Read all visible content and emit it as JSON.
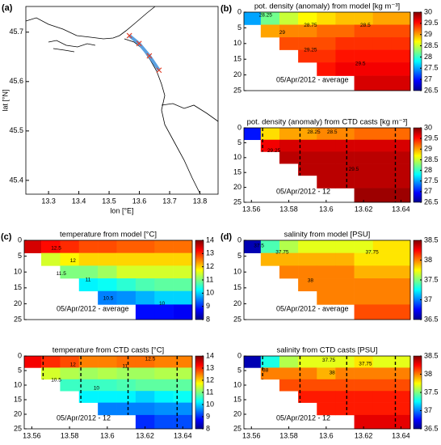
{
  "chart_data": [
    {
      "type": "map",
      "label": "(a)",
      "xlabel": "lon [°E]",
      "ylabel": "lat [°N]",
      "xlim": [
        13.225,
        13.86
      ],
      "ylim": [
        45.372,
        45.752
      ],
      "xticks": [
        13.3,
        13.4,
        13.5,
        13.6,
        13.7,
        13.8
      ],
      "yticks": [
        45.4,
        45.5,
        45.6,
        45.7
      ],
      "stations": {
        "lon": [
          13.567,
          13.599,
          13.633,
          13.665
        ],
        "lat": [
          45.693,
          45.677,
          45.652,
          45.623
        ]
      },
      "line_color": "#5aa0e0",
      "marker_color": "#e0402a"
    },
    {
      "type": "contour",
      "label": "(b)",
      "title": "pot. density (anomaly) from model [kg m⁻³]",
      "annotation": "05/Apr/2012 - average",
      "x": [
        13.56,
        13.57,
        13.58,
        13.59,
        13.6,
        13.61,
        13.62,
        13.63,
        13.64
      ],
      "depths": [
        2,
        6,
        10,
        14,
        18,
        22.5
      ],
      "z": [
        [
          27.5,
          28.2,
          28.5,
          28.7,
          28.8,
          28.9,
          28.9,
          29.0,
          29.0
        ],
        [
          null,
          29.0,
          29.1,
          29.1,
          29.2,
          29.2,
          29.3,
          29.3,
          29.3
        ],
        [
          null,
          null,
          29.3,
          29.3,
          29.3,
          29.4,
          29.4,
          29.4,
          29.4
        ],
        [
          null,
          null,
          null,
          29.4,
          29.4,
          29.5,
          29.5,
          29.5,
          29.5
        ],
        [
          null,
          null,
          null,
          null,
          29.5,
          29.6,
          29.6,
          29.6,
          29.6
        ],
        [
          null,
          null,
          null,
          null,
          null,
          null,
          29.7,
          29.7,
          29.7
        ]
      ],
      "xlim": [
        13.556,
        13.645
      ],
      "ylim": [
        0,
        25
      ],
      "y_inverted": true,
      "yticks": [
        0,
        5,
        10,
        15,
        20,
        25
      ],
      "colorbar": {
        "lim": [
          26.5,
          30
        ],
        "ticks": [
          26.5,
          27,
          27.5,
          28,
          28.5,
          29,
          29.5,
          30
        ]
      },
      "contour_labels": [
        28.25,
        28.5,
        28.75,
        29,
        29.25,
        29.5
      ]
    },
    {
      "type": "contour",
      "title": "pot. density (anomaly) from CTD casts [kg m⁻³]",
      "annotation": "05/Apr/2012 - 12",
      "x": [
        13.56,
        13.57,
        13.58,
        13.59,
        13.6,
        13.61,
        13.62,
        13.63,
        13.64
      ],
      "depths": [
        2,
        6,
        10,
        14,
        18,
        22.5
      ],
      "z": [
        [
          27.0,
          28.8,
          29.0,
          29.0,
          29.1,
          29.1,
          29.2,
          29.2,
          29.2
        ],
        [
          null,
          29.6,
          29.7,
          29.7,
          29.7,
          29.7,
          29.7,
          29.7,
          29.7
        ],
        [
          null,
          null,
          29.8,
          29.8,
          29.8,
          29.8,
          29.8,
          29.8,
          29.8
        ],
        [
          null,
          null,
          null,
          29.8,
          29.8,
          29.8,
          29.8,
          29.8,
          29.8
        ],
        [
          null,
          null,
          null,
          null,
          29.8,
          29.8,
          29.8,
          29.8,
          29.8
        ],
        [
          null,
          null,
          null,
          null,
          null,
          null,
          29.9,
          29.9,
          29.9
        ]
      ],
      "xlim": [
        13.556,
        13.645
      ],
      "ylim": [
        0,
        25
      ],
      "y_inverted": true,
      "yticks": [
        0,
        5,
        10,
        15,
        20,
        25
      ],
      "xticks": [
        13.56,
        13.58,
        13.6,
        13.62,
        13.64
      ],
      "colorbar": {
        "lim": [
          26.5,
          30
        ],
        "ticks": [
          26.5,
          27,
          27.5,
          28,
          28.5,
          29,
          29.5,
          30
        ]
      },
      "casts": [
        13.566,
        13.586,
        13.611,
        13.637
      ],
      "contour_labels": [
        28.25,
        28.5,
        29.25,
        29.5
      ]
    },
    {
      "type": "contour",
      "label": "(c)",
      "title": "temperature from model [°C]",
      "annotation": "05/Apr/2012 - average",
      "x": [
        13.56,
        13.57,
        13.58,
        13.59,
        13.6,
        13.61,
        13.62,
        13.63,
        13.64
      ],
      "depths": [
        2,
        6,
        10,
        14,
        18,
        22.5
      ],
      "z": [
        [
          13.5,
          13.2,
          13.0,
          12.8,
          12.8,
          12.7,
          12.7,
          12.6,
          12.6
        ],
        [
          null,
          11.5,
          11.8,
          12.0,
          12.0,
          12.0,
          12.0,
          12.0,
          12.0
        ],
        [
          null,
          null,
          11.0,
          11.0,
          11.2,
          11.5,
          11.5,
          11.5,
          11.5
        ],
        [
          null,
          null,
          null,
          10.2,
          10.3,
          10.5,
          10.7,
          10.8,
          10.8
        ],
        [
          null,
          null,
          null,
          null,
          9.5,
          9.6,
          9.8,
          10.0,
          10.0
        ],
        [
          null,
          null,
          null,
          null,
          null,
          null,
          8.8,
          8.8,
          8.7
        ]
      ],
      "xlim": [
        13.556,
        13.645
      ],
      "ylim": [
        0,
        25
      ],
      "y_inverted": true,
      "yticks": [
        0,
        5,
        10,
        15,
        20,
        25
      ],
      "colorbar": {
        "lim": [
          8,
          14
        ],
        "ticks": [
          8,
          9,
          10,
          11,
          12,
          13,
          14
        ]
      },
      "contour_labels": [
        12.5,
        12,
        11.5,
        11,
        10.5,
        10
      ]
    },
    {
      "type": "contour",
      "title": "temperature from CTD casts [°C]",
      "annotation": "05/Apr/2012 - 12",
      "x": [
        13.56,
        13.57,
        13.58,
        13.59,
        13.6,
        13.61,
        13.62,
        13.63,
        13.64
      ],
      "depths": [
        2,
        6,
        10,
        14,
        18,
        22.5
      ],
      "z": [
        [
          13.3,
          13.0,
          12.8,
          12.5,
          12.5,
          12.6,
          12.6,
          12.5,
          12.5
        ],
        [
          null,
          11.5,
          11.3,
          11.2,
          11.3,
          11.2,
          11.2,
          11.3,
          11.3
        ],
        [
          null,
          null,
          10.6,
          10.6,
          10.6,
          10.7,
          10.8,
          10.8,
          10.8
        ],
        [
          null,
          null,
          null,
          10.2,
          10.2,
          10.2,
          10.0,
          10.2,
          10.3
        ],
        [
          null,
          null,
          null,
          null,
          9.5,
          9.5,
          9.5,
          9.6,
          9.6
        ],
        [
          null,
          null,
          null,
          null,
          null,
          null,
          9.0,
          9.2,
          9.2
        ]
      ],
      "xlim": [
        13.556,
        13.645
      ],
      "ylim": [
        0,
        25
      ],
      "y_inverted": true,
      "yticks": [
        0,
        5,
        10,
        15,
        20,
        25
      ],
      "xticks": [
        13.56,
        13.58,
        13.6,
        13.62,
        13.64
      ],
      "colorbar": {
        "lim": [
          8,
          14
        ],
        "ticks": [
          8,
          9,
          10,
          11,
          12,
          13,
          14
        ]
      },
      "casts": [
        13.566,
        13.586,
        13.611,
        13.637
      ],
      "contour_labels": [
        12.5,
        12,
        11,
        10.5,
        10
      ]
    },
    {
      "type": "contour",
      "label": "(d)",
      "title": "salinity from model [PSU]",
      "annotation": "05/Apr/2012 - average",
      "x": [
        13.56,
        13.57,
        13.58,
        13.59,
        13.6,
        13.61,
        13.62,
        13.63,
        13.64
      ],
      "depths": [
        2,
        6,
        10,
        14,
        18,
        22.5
      ],
      "z": [
        [
          36.6,
          37.4,
          37.6,
          37.7,
          37.7,
          37.7,
          37.7,
          37.8,
          37.8
        ],
        [
          null,
          37.9,
          37.9,
          37.9,
          37.9,
          37.9,
          37.8,
          37.8,
          37.8
        ],
        [
          null,
          null,
          38.0,
          38.0,
          38.0,
          38.0,
          37.9,
          37.9,
          37.9
        ],
        [
          null,
          null,
          null,
          38.0,
          38.0,
          38.0,
          38.0,
          38.0,
          38.0
        ],
        [
          null,
          null,
          null,
          null,
          38.0,
          38.0,
          38.0,
          38.0,
          38.0
        ],
        [
          null,
          null,
          null,
          null,
          null,
          null,
          38.1,
          38.1,
          38.1
        ]
      ],
      "xlim": [
        13.556,
        13.645
      ],
      "ylim": [
        0,
        25
      ],
      "y_inverted": true,
      "yticks": [
        0,
        5,
        10,
        15,
        20,
        25
      ],
      "colorbar": {
        "lim": [
          36.5,
          38.5
        ],
        "ticks": [
          36.5,
          37,
          37.5,
          38,
          38.5
        ]
      },
      "contour_labels": [
        37.5,
        37.75,
        38,
        37.75
      ]
    },
    {
      "type": "contour",
      "title": "salinity from CTD casts [PSU]",
      "annotation": "05/Apr/2012 - 12",
      "x": [
        13.56,
        13.57,
        13.58,
        13.59,
        13.6,
        13.61,
        13.62,
        13.63,
        13.64
      ],
      "depths": [
        2,
        6,
        10,
        14,
        18,
        22.5
      ],
      "z": [
        [
          36.6,
          37.3,
          37.6,
          37.7,
          37.7,
          37.7,
          37.8,
          37.7,
          37.7
        ],
        [
          null,
          38.0,
          38.0,
          38.0,
          37.9,
          38.0,
          38.0,
          38.0,
          38.0
        ],
        [
          null,
          null,
          38.1,
          38.1,
          38.1,
          38.1,
          38.1,
          38.1,
          38.1
        ],
        [
          null,
          null,
          null,
          38.2,
          38.2,
          38.2,
          38.2,
          38.2,
          38.2
        ],
        [
          null,
          null,
          null,
          null,
          38.2,
          38.2,
          38.2,
          38.2,
          38.2
        ],
        [
          null,
          null,
          null,
          null,
          null,
          null,
          38.3,
          38.3,
          38.3
        ]
      ],
      "xlim": [
        13.556,
        13.645
      ],
      "ylim": [
        0,
        25
      ],
      "y_inverted": true,
      "yticks": [
        0,
        5,
        10,
        15,
        20,
        25
      ],
      "xticks": [
        13.56,
        13.58,
        13.6,
        13.62,
        13.64
      ],
      "colorbar": {
        "lim": [
          36.5,
          38.5
        ],
        "ticks": [
          36.5,
          37,
          37.5,
          38,
          38.5
        ]
      },
      "casts": [
        13.566,
        13.586,
        13.611,
        13.637
      ],
      "contour_labels": [
        37.75,
        38,
        38,
        37.75
      ]
    }
  ]
}
